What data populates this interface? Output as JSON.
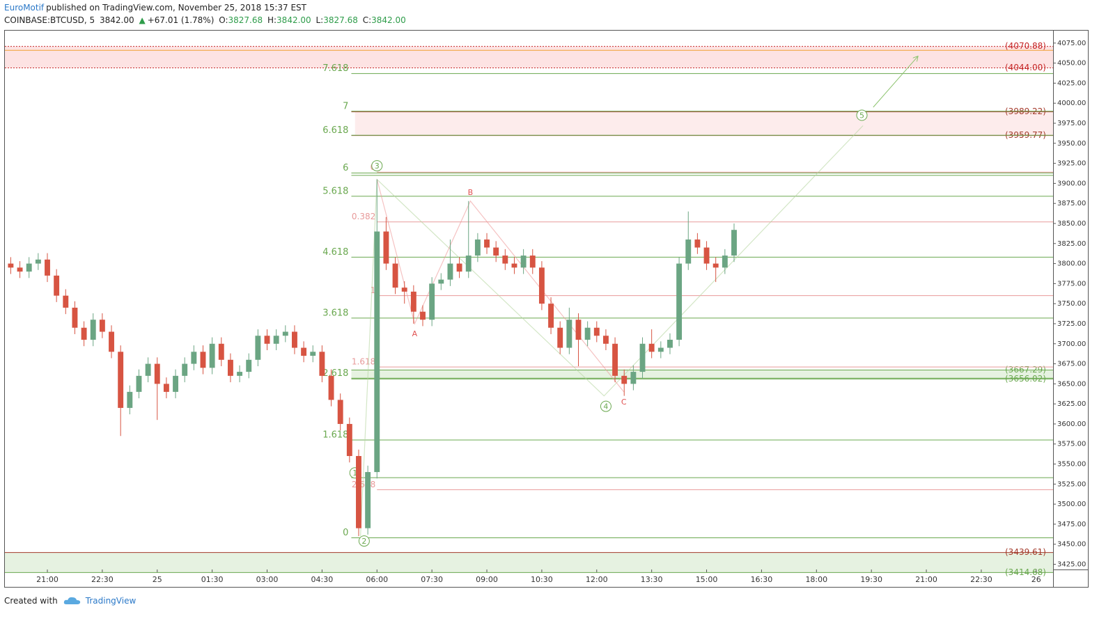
{
  "header": {
    "author": "EuroMotif",
    "published": "published on TradingView.com, November 25, 2018 15:37 EST",
    "symbol": "COINBASE:BTCUSD, 5",
    "last": "3842.00",
    "change": "+67.01 (1.78%)",
    "ohlc": [
      {
        "key": "O:",
        "value": "3827.68"
      },
      {
        "key": "H:",
        "value": "3842.00"
      },
      {
        "key": "L:",
        "value": "3827.68"
      },
      {
        "key": "C:",
        "value": "3842.00"
      }
    ]
  },
  "footer": {
    "created": "Created with",
    "brand": "TradingView"
  },
  "chart_data": {
    "type": "candlestick",
    "up_color": "#6ba583",
    "down_color": "#d75442",
    "xlim": [
      19.84,
      48.46
    ],
    "ylim": [
      3418.5,
      4090.5
    ],
    "xticks": [
      {
        "value": 21,
        "label": "21:00"
      },
      {
        "value": 22.5,
        "label": "22:30"
      },
      {
        "value": 24,
        "label": "25"
      },
      {
        "value": 25.5,
        "label": "01:30"
      },
      {
        "value": 27,
        "label": "03:00"
      },
      {
        "value": 28.5,
        "label": "04:30"
      },
      {
        "value": 30,
        "label": "06:00"
      },
      {
        "value": 31.5,
        "label": "07:30"
      },
      {
        "value": 33,
        "label": "09:00"
      },
      {
        "value": 34.5,
        "label": "10:30"
      },
      {
        "value": 36,
        "label": "12:00"
      },
      {
        "value": 37.5,
        "label": "13:30"
      },
      {
        "value": 39,
        "label": "15:00"
      },
      {
        "value": 40.5,
        "label": "16:30"
      },
      {
        "value": 42,
        "label": "18:00"
      },
      {
        "value": 43.5,
        "label": "19:30"
      },
      {
        "value": 45,
        "label": "21:00"
      },
      {
        "value": 46.5,
        "label": "22:30"
      },
      {
        "value": 48,
        "label": "26"
      }
    ],
    "yticks": [
      {
        "value": 3425,
        "label": "3425.00"
      },
      {
        "value": 3450,
        "label": "3450.00"
      },
      {
        "value": 3475,
        "label": "3475.00"
      },
      {
        "value": 3500,
        "label": "3500.00"
      },
      {
        "value": 3525,
        "label": "3525.00"
      },
      {
        "value": 3550,
        "label": "3550.00"
      },
      {
        "value": 3575,
        "label": "3575.00"
      },
      {
        "value": 3600,
        "label": "3600.00"
      },
      {
        "value": 3625,
        "label": "3625.00"
      },
      {
        "value": 3650,
        "label": "3650.00"
      },
      {
        "value": 3675,
        "label": "3675.00"
      },
      {
        "value": 3700,
        "label": "3700.00"
      },
      {
        "value": 3725,
        "label": "3725.00"
      },
      {
        "value": 3750,
        "label": "3750.00"
      },
      {
        "value": 3775,
        "label": "3775.00"
      },
      {
        "value": 3800,
        "label": "3800.00"
      },
      {
        "value": 3825,
        "label": "3825.00"
      },
      {
        "value": 3850,
        "label": "3850.00"
      },
      {
        "value": 3875,
        "label": "3875.00"
      },
      {
        "value": 3900,
        "label": "3900.00"
      },
      {
        "value": 3925,
        "label": "3925.00"
      },
      {
        "value": 3950,
        "label": "3950.00"
      },
      {
        "value": 3975,
        "label": "3975.00"
      },
      {
        "value": 4000,
        "label": "4000.00"
      },
      {
        "value": 4025,
        "label": "4025.00"
      },
      {
        "value": 4050,
        "label": "4050.00"
      },
      {
        "value": 4075,
        "label": "4075.00"
      }
    ],
    "x": [
      20,
      20.25,
      20.5,
      20.75,
      21,
      21.25,
      21.5,
      21.75,
      22,
      22.25,
      22.5,
      22.75,
      23,
      23.25,
      23.5,
      23.75,
      24,
      24.25,
      24.5,
      24.75,
      25,
      25.25,
      25.5,
      25.75,
      26,
      26.25,
      26.5,
      26.75,
      27,
      27.25,
      27.5,
      27.75,
      28,
      28.25,
      28.5,
      28.75,
      29,
      29.25,
      29.5,
      29.75,
      30,
      30.25,
      30.5,
      30.75,
      31,
      31.25,
      31.5,
      31.75,
      32,
      32.25,
      32.5,
      32.75,
      33,
      33.25,
      33.5,
      33.75,
      34,
      34.25,
      34.5,
      34.75,
      35,
      35.25,
      35.5,
      35.75,
      36,
      36.25,
      36.5,
      36.75,
      37,
      37.25,
      37.5,
      37.75,
      38,
      38.25,
      38.5,
      38.75,
      39,
      39.25,
      39.5,
      39.75
    ],
    "open": [
      3800,
      3795,
      3790,
      3800,
      3805,
      3785,
      3760,
      3745,
      3720,
      3705,
      3730,
      3715,
      3690,
      3620,
      3640,
      3660,
      3675,
      3650,
      3640,
      3660,
      3675,
      3690,
      3670,
      3700,
      3680,
      3660,
      3665,
      3680,
      3710,
      3700,
      3710,
      3715,
      3695,
      3685,
      3690,
      3660,
      3630,
      3600,
      3560,
      3470,
      3540,
      3840,
      3800,
      3770,
      3765,
      3740,
      3730,
      3775,
      3780,
      3800,
      3790,
      3810,
      3830,
      3820,
      3810,
      3800,
      3795,
      3810,
      3795,
      3750,
      3720,
      3695,
      3730,
      3705,
      3720,
      3710,
      3700,
      3660,
      3650,
      3665,
      3700,
      3690,
      3695,
      3705,
      3800,
      3830,
      3820,
      3800,
      3795,
      3810
    ],
    "high": [
      3808,
      3803,
      3808,
      3813,
      3813,
      3793,
      3768,
      3753,
      3728,
      3738,
      3738,
      3723,
      3698,
      3648,
      3668,
      3683,
      3683,
      3658,
      3668,
      3683,
      3698,
      3698,
      3708,
      3708,
      3688,
      3673,
      3688,
      3718,
      3718,
      3718,
      3723,
      3723,
      3703,
      3698,
      3698,
      3668,
      3638,
      3608,
      3568,
      3548,
      3905,
      3858,
      3808,
      3778,
      3773,
      3748,
      3783,
      3788,
      3830,
      3808,
      3878,
      3838,
      3838,
      3828,
      3818,
      3808,
      3818,
      3818,
      3803,
      3758,
      3728,
      3745,
      3738,
      3728,
      3728,
      3718,
      3708,
      3668,
      3673,
      3708,
      3718,
      3703,
      3713,
      3808,
      3865,
      3838,
      3828,
      3808,
      3818,
      3850
    ],
    "low": [
      3787,
      3782,
      3782,
      3792,
      3777,
      3752,
      3737,
      3712,
      3697,
      3697,
      3707,
      3682,
      3585,
      3612,
      3632,
      3652,
      3605,
      3632,
      3632,
      3652,
      3667,
      3662,
      3662,
      3672,
      3652,
      3652,
      3657,
      3672,
      3692,
      3692,
      3702,
      3687,
      3677,
      3677,
      3652,
      3622,
      3592,
      3552,
      3460,
      3462,
      3532,
      3792,
      3762,
      3750,
      3725,
      3722,
      3722,
      3767,
      3772,
      3782,
      3782,
      3802,
      3812,
      3802,
      3792,
      3787,
      3787,
      3787,
      3742,
      3712,
      3687,
      3687,
      3672,
      3697,
      3702,
      3692,
      3652,
      3635,
      3642,
      3657,
      3682,
      3682,
      3687,
      3697,
      3792,
      3812,
      3792,
      3777,
      3787,
      3802
    ],
    "close": [
      3795,
      3790,
      3800,
      3805,
      3785,
      3760,
      3745,
      3720,
      3705,
      3730,
      3715,
      3690,
      3620,
      3640,
      3660,
      3675,
      3650,
      3640,
      3660,
      3675,
      3690,
      3670,
      3700,
      3680,
      3660,
      3665,
      3680,
      3710,
      3700,
      3710,
      3715,
      3695,
      3685,
      3690,
      3660,
      3630,
      3600,
      3560,
      3470,
      3540,
      3840,
      3800,
      3770,
      3765,
      3740,
      3730,
      3775,
      3780,
      3800,
      3790,
      3810,
      3830,
      3820,
      3810,
      3800,
      3795,
      3810,
      3795,
      3750,
      3720,
      3695,
      3730,
      3705,
      3720,
      3710,
      3700,
      3660,
      3650,
      3665,
      3700,
      3690,
      3695,
      3705,
      3800,
      3830,
      3820,
      3800,
      3795,
      3810,
      3842
    ],
    "zones": [
      {
        "low": 4044,
        "high": 4070.88,
        "start": 19.84,
        "color": "#fde3e3"
      },
      {
        "low": 3959.77,
        "high": 3989.22,
        "start": 29.4,
        "color": "#fdecec"
      },
      {
        "low": 3656.02,
        "high": 3667.29,
        "start": 29.3,
        "color": "#e6f2e1"
      },
      {
        "low": 3414.68,
        "high": 3439.61,
        "start": 19.84,
        "color": "#e6f2e1"
      }
    ],
    "price_labels": [
      {
        "value": 4070.88,
        "label": "(4070.88)",
        "color": "#c62828",
        "start": 19.84,
        "dash": true
      },
      {
        "value": 4044.0,
        "label": "(4044.00)",
        "color": "#c62828",
        "start": 19.84,
        "dash": true
      },
      {
        "value": 3989.22,
        "label": "(3989.22)",
        "color": "#a33a2a",
        "start": 29.3,
        "dash": false
      },
      {
        "value": 3959.77,
        "label": "(3959.77)",
        "color": "#a33a2a",
        "start": 29.3,
        "dash": false
      },
      {
        "value": 3667.29,
        "label": "(3667.29)",
        "color": "#6aa84f",
        "start": 29.3,
        "dash": false
      },
      {
        "value": 3656.02,
        "label": "(3656.02)",
        "color": "#6aa84f",
        "start": 29.3,
        "dash": false
      },
      {
        "value": 3439.61,
        "label": "(3439.61)",
        "color": "#a33a2a",
        "start": 19.84,
        "dash": false
      },
      {
        "value": 3414.68,
        "label": "(3414.68)",
        "color": "#6aa84f",
        "start": 19.84,
        "dash": false
      }
    ],
    "horizontal_lines": [
      {
        "price": 4066,
        "color": "#f0a030"
      },
      {
        "price": 3533,
        "color": "#6aa84f"
      },
      {
        "price": 3910,
        "color": "#6aa84f"
      }
    ],
    "fib_extension": {
      "color": "#6aa84f",
      "start": 29.3,
      "levels": [
        {
          "ratio": "0",
          "price": 3458
        },
        {
          "ratio": "1.618",
          "price": 3580
        },
        {
          "ratio": "2.618",
          "price": 3657
        },
        {
          "ratio": "3.618",
          "price": 3732
        },
        {
          "ratio": "4.618",
          "price": 3808
        },
        {
          "ratio": "5.618",
          "price": 3884
        },
        {
          "ratio": "6",
          "price": 3913
        },
        {
          "ratio": "6.618",
          "price": 3960
        },
        {
          "ratio": "7",
          "price": 3990
        },
        {
          "ratio": "7.618",
          "price": 4037
        }
      ]
    },
    "fib_retracement": {
      "color": "#e89a9a",
      "start": 30.0,
      "levels": [
        {
          "ratio": "0",
          "price": 3914
        },
        {
          "ratio": "0.382",
          "price": 3852
        },
        {
          "ratio": "1",
          "price": 3760
        },
        {
          "ratio": "1.618",
          "price": 3671
        },
        {
          "ratio": "2.618",
          "price": 3518
        }
      ]
    },
    "waves": {
      "color": "#6aa84f",
      "path_x": [
        29.55,
        30.0,
        36.2,
        43.27
      ],
      "path_price": [
        3460,
        3905,
        3635,
        3972
      ],
      "arrow_x": [
        43.55,
        44.76
      ],
      "arrow_price": [
        3995,
        4058
      ],
      "labels": [
        {
          "text": "1",
          "x": 29.4,
          "price": 3539
        },
        {
          "text": "2",
          "x": 29.65,
          "price": 3454
        },
        {
          "text": "3",
          "x": 30.0,
          "price": 3922
        },
        {
          "text": "4",
          "x": 36.25,
          "price": 3622
        },
        {
          "text": "5",
          "x": 43.24,
          "price": 3985
        }
      ]
    },
    "abc": {
      "color": "#ee9a9a",
      "label_color": "#e05050",
      "path_x": [
        30.0,
        31.03,
        32.55,
        36.74
      ],
      "path_price": [
        3905,
        3725,
        3878,
        3640
      ],
      "labels": [
        {
          "text": "A",
          "x": 31.03,
          "price": 3712
        },
        {
          "text": "B",
          "x": 32.55,
          "price": 3888
        },
        {
          "text": "C",
          "x": 36.74,
          "price": 3627
        }
      ]
    }
  }
}
